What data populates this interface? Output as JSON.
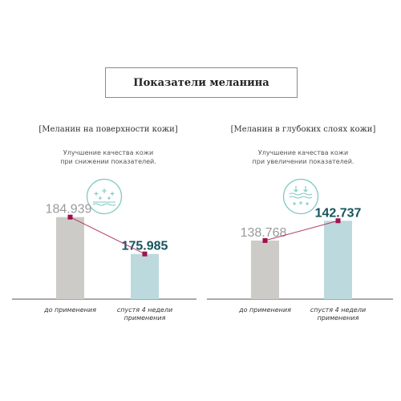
{
  "title": "Показатели меланина",
  "colors": {
    "gray_bar": "#cdcbc8",
    "teal_bar": "#bcd9dd",
    "line": "#b03a68",
    "marker": "#a0124d",
    "value_gray": "#9a9a9a",
    "value_teal": "#14545e",
    "icon": "#7fc7c2"
  },
  "panels": [
    {
      "heading": "[Меланин на поверхности кожи]",
      "note_line1": "Улучшение качества кожи",
      "note_line2": "при снижении показателей.",
      "icon": "sparkle-surface-icon"
    },
    {
      "heading": "[Меланин в глубоких слоях кожи]",
      "note_line1": "Улучшение качества кожи",
      "note_line2": "при увеличении показателей.",
      "icon": "deep-layers-arrows-icon"
    }
  ],
  "chart_data": [
    {
      "type": "bar",
      "categories": [
        "до применения",
        "спустя 4 недели применения"
      ],
      "category_lines": [
        [
          "до применения"
        ],
        [
          "спустя 4 недели",
          "применения"
        ]
      ],
      "values": [
        184.939,
        175.985
      ],
      "value_labels": [
        "184.939",
        "175.985"
      ],
      "ylim": [
        165,
        188
      ],
      "connector_line": true
    },
    {
      "type": "bar",
      "categories": [
        "до применения",
        "спустя 4 недели применения"
      ],
      "category_lines": [
        [
          "до применения"
        ],
        [
          "спустя 4 недели",
          "применения"
        ]
      ],
      "values": [
        138.768,
        142.737
      ],
      "value_labels": [
        "138.768",
        "142.737"
      ],
      "ylim": [
        127,
        146
      ],
      "connector_line": true
    }
  ]
}
